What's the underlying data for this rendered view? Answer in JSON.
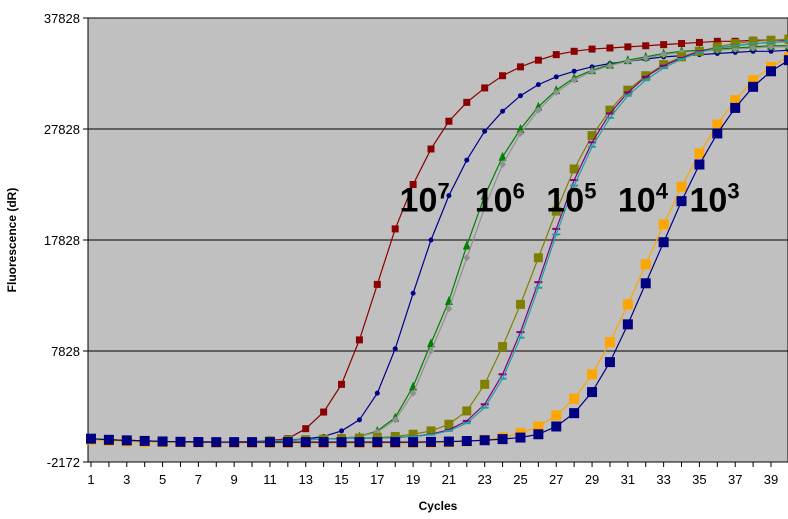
{
  "chart_data": {
    "type": "line",
    "title": "",
    "xlabel": "Cycles",
    "ylabel": "Fluorescence (dR)",
    "xlim": [
      1,
      40
    ],
    "ylim": [
      -2172,
      37828
    ],
    "x_tick_labels": [
      "1",
      "3",
      "5",
      "7",
      "9",
      "11",
      "13",
      "15",
      "17",
      "19",
      "21",
      "23",
      "25",
      "27",
      "29",
      "31",
      "33",
      "35",
      "37",
      "39"
    ],
    "y_tick_labels": [
      "-2172",
      "7828",
      "17828",
      "27828",
      "37828"
    ],
    "y_tick_values": [
      -2172,
      7828,
      17828,
      27828,
      37828
    ],
    "grid": "horizontal",
    "plot_background": "#c0c0c0",
    "annotations": [
      {
        "base": "10",
        "exp": "7",
        "x": 19.3,
        "y": 20400
      },
      {
        "base": "10",
        "exp": "6",
        "x": 23.5,
        "y": 20400
      },
      {
        "base": "10",
        "exp": "5",
        "x": 27.5,
        "y": 20400
      },
      {
        "base": "10",
        "exp": "4",
        "x": 31.5,
        "y": 20400
      },
      {
        "base": "10",
        "exp": "3",
        "x": 35.5,
        "y": 20400
      }
    ],
    "series": [
      {
        "color": "#8b0000",
        "marker": "square",
        "size": 7,
        "values": [
          -72,
          -172,
          -222,
          -272,
          -322,
          -352,
          -372,
          -382,
          -382,
          -352,
          -232,
          -72,
          828,
          2328,
          4828,
          8828,
          13828,
          18828,
          22828,
          26028,
          28528,
          30228,
          31528,
          32628,
          33428,
          34028,
          34528,
          34828,
          35028,
          35128,
          35228,
          35328,
          35428,
          35528,
          35628,
          35728,
          35728,
          35828,
          35828,
          35828
        ]
      },
      {
        "color": "#00008b",
        "marker": "circle",
        "size": 4,
        "values": [
          -72,
          -172,
          -222,
          -272,
          -322,
          -352,
          -372,
          -382,
          -382,
          -352,
          -262,
          -192,
          -102,
          128,
          628,
          1628,
          4028,
          8028,
          13028,
          17828,
          21828,
          25028,
          27628,
          29428,
          30828,
          31828,
          32528,
          33028,
          33428,
          33728,
          33928,
          34128,
          34328,
          34428,
          34528,
          34628,
          34728,
          34828,
          34828,
          34928
        ]
      },
      {
        "color": "#008000",
        "marker": "triangle",
        "size": 8,
        "values": [
          -72,
          -172,
          -222,
          -272,
          -322,
          -352,
          -372,
          -382,
          -382,
          -352,
          -262,
          -212,
          -162,
          -112,
          -32,
          128,
          628,
          1828,
          4628,
          8528,
          12328,
          17328,
          21828,
          25328,
          27828,
          29828,
          31328,
          32428,
          33128,
          33628,
          34028,
          34328,
          34628,
          34828,
          34928,
          35028,
          35128,
          35228,
          35328,
          35328
        ]
      },
      {
        "color": "#909090",
        "marker": "diamond",
        "size": 7,
        "values": [
          -72,
          -172,
          -222,
          -272,
          -322,
          -352,
          -372,
          -382,
          -382,
          -352,
          -262,
          -212,
          -162,
          -112,
          -32,
          128,
          528,
          1628,
          4028,
          7828,
          11628,
          16228,
          20728,
          24628,
          27428,
          29528,
          31128,
          32228,
          33028,
          33528,
          33928,
          34228,
          34528,
          34728,
          34828,
          34928,
          35028,
          35128,
          35228,
          35228
        ]
      },
      {
        "color": "#808000",
        "marker": "square",
        "size": 9,
        "values": [
          -72,
          -172,
          -222,
          -272,
          -322,
          -352,
          -372,
          -382,
          -382,
          -352,
          -262,
          -212,
          -162,
          -112,
          -62,
          -12,
          28,
          128,
          328,
          628,
          1228,
          2428,
          4828,
          8228,
          12028,
          16228,
          20428,
          24228,
          27228,
          29528,
          31328,
          32628,
          33628,
          34328,
          34828,
          35228,
          35528,
          35728,
          35828,
          35928
        ]
      },
      {
        "color": "#800080",
        "marker": "dash",
        "size": 8,
        "values": [
          -72,
          -172,
          -222,
          -272,
          -322,
          -352,
          -372,
          -382,
          -382,
          -352,
          -262,
          -212,
          -162,
          -112,
          -62,
          -32,
          -12,
          28,
          128,
          328,
          728,
          1528,
          3028,
          5728,
          9528,
          14028,
          18828,
          23228,
          26628,
          29228,
          31128,
          32528,
          33528,
          34228,
          34828,
          35128,
          35328,
          35528,
          35628,
          35728
        ]
      },
      {
        "color": "#20a0a0",
        "marker": "dash",
        "size": 8,
        "values": [
          -72,
          -172,
          -222,
          -272,
          -322,
          -352,
          -372,
          -382,
          -382,
          -352,
          -262,
          -212,
          -162,
          -112,
          -62,
          -32,
          -12,
          28,
          108,
          288,
          628,
          1328,
          2728,
          5328,
          9028,
          13528,
          18328,
          22728,
          26228,
          28828,
          30828,
          32228,
          33328,
          34128,
          34728,
          35128,
          35328,
          35528,
          35628,
          35728
        ]
      },
      {
        "color": "#ffa500",
        "marker": "square",
        "size": 10,
        "values": [
          -172,
          -272,
          -322,
          -372,
          -382,
          -402,
          -422,
          -432,
          -442,
          -452,
          -462,
          -472,
          -472,
          -472,
          -472,
          -472,
          -472,
          -472,
          -462,
          -442,
          -392,
          -312,
          -172,
          28,
          428,
          1028,
          2028,
          3528,
          5728,
          8628,
          12028,
          15628,
          19228,
          22628,
          25628,
          28228,
          30428,
          32228,
          33428,
          34328
        ]
      },
      {
        "color": "#000080",
        "marker": "square",
        "size": 10,
        "values": [
          -72,
          -172,
          -222,
          -272,
          -322,
          -352,
          -372,
          -382,
          -382,
          -382,
          -382,
          -382,
          -382,
          -382,
          -382,
          -382,
          -382,
          -382,
          -382,
          -362,
          -332,
          -282,
          -212,
          -112,
          28,
          328,
          1028,
          2228,
          4128,
          6828,
          10228,
          13928,
          17628,
          21328,
          24628,
          27428,
          29728,
          31628,
          33028,
          34028
        ]
      }
    ]
  }
}
